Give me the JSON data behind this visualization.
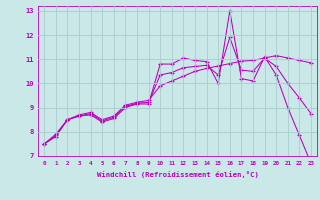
{
  "xlabel": "Windchill (Refroidissement éolien,°C)",
  "bg_color": "#cbe8e8",
  "line_color": "#bb00bb",
  "grid_color": "#aacccc",
  "xlim": [
    -0.5,
    23.5
  ],
  "ylim": [
    7,
    13.2
  ],
  "yticks": [
    7,
    8,
    9,
    10,
    11,
    12,
    13
  ],
  "xticks": [
    0,
    1,
    2,
    3,
    4,
    5,
    6,
    7,
    8,
    9,
    10,
    11,
    12,
    13,
    14,
    15,
    16,
    17,
    18,
    19,
    20,
    21,
    22,
    23
  ],
  "series1": [
    7.5,
    7.8,
    8.5,
    8.65,
    8.7,
    8.4,
    8.55,
    9.0,
    9.15,
    9.15,
    10.8,
    10.8,
    11.05,
    10.95,
    10.9,
    10.0,
    13.0,
    10.2,
    10.1,
    11.1,
    10.35,
    9.0,
    7.85,
    6.7
  ],
  "series2": [
    7.5,
    7.85,
    8.5,
    8.65,
    8.75,
    8.45,
    8.6,
    9.05,
    9.18,
    9.22,
    10.35,
    10.45,
    10.65,
    10.7,
    10.75,
    10.35,
    11.9,
    10.55,
    10.5,
    11.05,
    10.7,
    10.0,
    9.4,
    8.75
  ],
  "series3": [
    7.5,
    7.9,
    8.5,
    8.7,
    8.8,
    8.5,
    8.65,
    9.1,
    9.22,
    9.3,
    9.9,
    10.1,
    10.3,
    10.5,
    10.62,
    10.72,
    10.82,
    10.92,
    10.95,
    11.05,
    11.15,
    11.05,
    10.95,
    10.85
  ]
}
